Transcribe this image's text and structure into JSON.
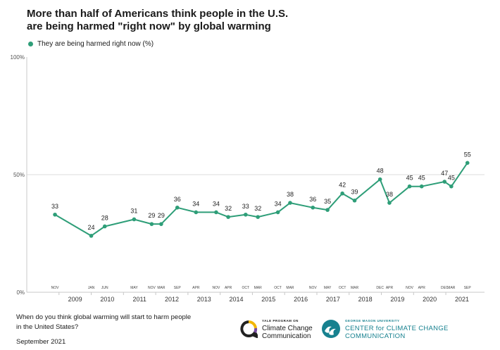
{
  "title_lines": [
    "More than half of Americans think people in the U.S.",
    "are being harmed \"right now\" by global warming"
  ],
  "footer": {
    "question_lines": [
      "When do you think global warming will start to harm people",
      "in the United States?"
    ],
    "date": "September 2021"
  },
  "logos": {
    "yale_small": "YALE PROGRAM ON",
    "yale_line1": "Climate Change",
    "yale_line2": "Communication",
    "gmu_small": "GEORGE MASON UNIVERSITY",
    "gmu_line1": "CENTER for CLIMATE CHANGE",
    "gmu_line2": "COMMUNICATION"
  },
  "colors": {
    "series": "#2e9e78",
    "axis": "#c8c8c8",
    "text": "#1a1a1a",
    "gmu": "#17818f"
  },
  "chart_data": {
    "type": "line",
    "x_unit": "fractional year",
    "ylim": [
      0,
      100
    ],
    "ytick_labels": [
      "0%",
      "50%",
      "100%"
    ],
    "ytick_values": [
      0,
      50,
      100
    ],
    "gridlines": [
      50
    ],
    "year_labels": [
      "2009",
      "2010",
      "2011",
      "2012",
      "2013",
      "2014",
      "2015",
      "2016",
      "2017",
      "2018",
      "2019",
      "2020",
      "2021"
    ],
    "series": [
      {
        "name": "They are being harmed right now (%)",
        "points": [
          {
            "x": 2008.875,
            "y": 33,
            "month": "NOV"
          },
          {
            "x": 2010.0,
            "y": 24,
            "month": "JAN"
          },
          {
            "x": 2010.42,
            "y": 28,
            "month": "JUN"
          },
          {
            "x": 2011.33,
            "y": 31,
            "month": "MAY"
          },
          {
            "x": 2011.875,
            "y": 29,
            "month": "NOV"
          },
          {
            "x": 2012.17,
            "y": 29,
            "month": "MAR"
          },
          {
            "x": 2012.67,
            "y": 36,
            "month": "SEP"
          },
          {
            "x": 2013.25,
            "y": 34,
            "month": "APR"
          },
          {
            "x": 2013.875,
            "y": 34,
            "month": "NOV"
          },
          {
            "x": 2014.25,
            "y": 32,
            "month": "APR"
          },
          {
            "x": 2014.79,
            "y": 33,
            "month": "OCT"
          },
          {
            "x": 2015.17,
            "y": 32,
            "month": "MAR"
          },
          {
            "x": 2015.79,
            "y": 34,
            "month": "OCT"
          },
          {
            "x": 2016.17,
            "y": 38,
            "month": "MAR"
          },
          {
            "x": 2016.875,
            "y": 36,
            "month": "NOV"
          },
          {
            "x": 2017.33,
            "y": 35,
            "month": "MAY"
          },
          {
            "x": 2017.79,
            "y": 42,
            "month": "OCT"
          },
          {
            "x": 2018.17,
            "y": 39,
            "month": "MAR"
          },
          {
            "x": 2018.96,
            "y": 48,
            "month": "DEC"
          },
          {
            "x": 2019.25,
            "y": 38,
            "month": "APR"
          },
          {
            "x": 2019.875,
            "y": 45,
            "month": "NOV"
          },
          {
            "x": 2020.25,
            "y": 45,
            "month": "APR"
          },
          {
            "x": 2020.96,
            "y": 47,
            "month": "DEC"
          },
          {
            "x": 2021.17,
            "y": 45,
            "month": "MAR"
          },
          {
            "x": 2021.67,
            "y": 55,
            "month": "SEP"
          }
        ]
      }
    ]
  }
}
